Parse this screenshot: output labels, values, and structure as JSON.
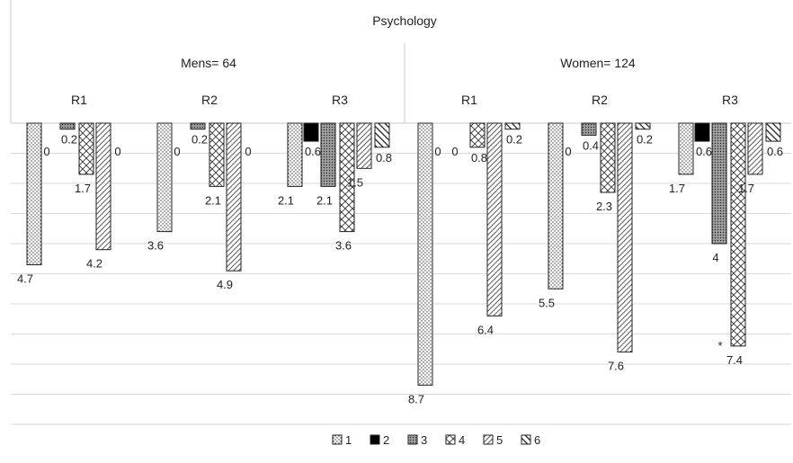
{
  "chart_data": {
    "type": "bar",
    "orientation": "downward",
    "title": "Psychology",
    "groups": [
      {
        "label": "Mens= 64",
        "subgroups": [
          "R1",
          "R2",
          "R3"
        ]
      },
      {
        "label": "Women= 124",
        "subgroups": [
          "R1",
          "R2",
          "R3"
        ]
      }
    ],
    "categories": [
      "Mens R1",
      "Mens R2",
      "Mens R3",
      "Women R1",
      "Women R2",
      "Women R3"
    ],
    "series": [
      {
        "name": "1",
        "pattern": "dots",
        "values": [
          4.7,
          3.6,
          2.1,
          8.7,
          5.5,
          1.7
        ]
      },
      {
        "name": "2",
        "pattern": "solid",
        "values": [
          0,
          0,
          0.6,
          0,
          0,
          0.6
        ]
      },
      {
        "name": "3",
        "pattern": "grid",
        "values": [
          0.2,
          0.2,
          2.1,
          0,
          0.4,
          4
        ]
      },
      {
        "name": "4",
        "pattern": "zigzag",
        "values": [
          1.7,
          2.1,
          3.6,
          0.8,
          2.3,
          7.4
        ]
      },
      {
        "name": "5",
        "pattern": "diag",
        "values": [
          4.2,
          4.9,
          1.5,
          6.4,
          7.6,
          1.7
        ]
      },
      {
        "name": "6",
        "pattern": "bold",
        "values": [
          0,
          0,
          0.8,
          0.2,
          0.2,
          0.6
        ]
      }
    ],
    "annotations": [
      {
        "text": "*",
        "category": "Women R3",
        "series": "4"
      }
    ],
    "ylim": [
      0,
      10
    ],
    "grid": true,
    "legend": "bottom",
    "colors": {
      "bar_stroke": "#222222",
      "grid": "#d9d9d9",
      "header_line": "#c8c8c8"
    }
  }
}
